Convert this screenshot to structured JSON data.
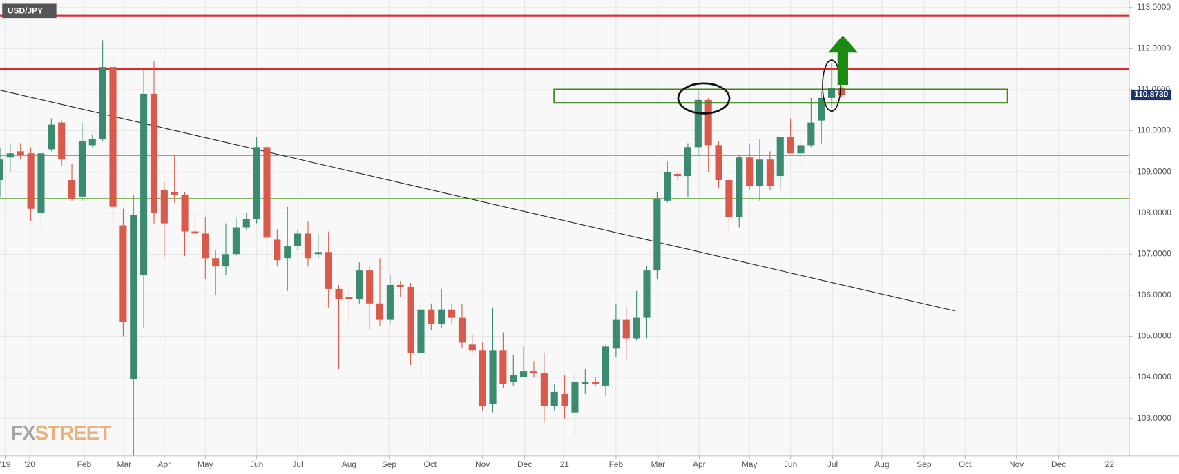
{
  "chart_data": {
    "type": "candlestick",
    "title": "USD/JPY",
    "categories": [
      null,
      null,
      null,
      null,
      null,
      null,
      null,
      null,
      null,
      null,
      null,
      null,
      null,
      null,
      null,
      null,
      null,
      null,
      null,
      null,
      null,
      null,
      null,
      null,
      null,
      null,
      null,
      null,
      null,
      null,
      null,
      null,
      null,
      null,
      null,
      null,
      null,
      null,
      null,
      null,
      null,
      null,
      null,
      null,
      null,
      null,
      null,
      null,
      null,
      null,
      null,
      null,
      null,
      null,
      null,
      null,
      null,
      null,
      null,
      null,
      null,
      null,
      null,
      null,
      null,
      null,
      null,
      null,
      null,
      null,
      null,
      null,
      null,
      null,
      null,
      null,
      null,
      null,
      null,
      null,
      null,
      null,
      null
    ],
    "open": [
      108.8,
      109.35,
      109.5,
      109.45,
      108.0,
      109.55,
      110.2,
      108.8,
      108.4,
      109.65,
      109.8,
      111.55,
      107.7,
      103.95,
      106.5,
      110.9,
      108.55,
      108.5,
      108.45,
      107.55,
      107.5,
      106.9,
      106.7,
      107.0,
      107.65,
      107.85,
      109.6,
      107.35,
      106.9,
      107.2,
      107.5,
      107.0,
      107.05,
      106.15,
      105.95,
      105.9,
      106.6,
      105.8,
      105.4,
      106.25,
      106.2,
      104.6,
      105.65,
      105.3,
      105.65,
      105.45,
      104.8,
      104.65,
      103.35,
      104.65,
      103.9,
      104.0,
      104.15,
      104.1,
      103.3,
      103.6,
      103.15,
      103.85,
      103.9,
      103.8,
      104.7,
      105.4,
      104.95,
      105.45,
      106.6,
      108.3,
      108.95,
      108.9,
      109.6,
      110.75,
      109.65,
      108.8,
      107.9,
      109.35,
      108.65,
      109.3,
      108.9,
      109.85,
      109.45,
      109.65,
      110.25,
      110.8,
      111.05
    ],
    "high": [
      109.6,
      109.7,
      109.7,
      109.6,
      109.5,
      110.3,
      110.25,
      109.2,
      110.2,
      109.9,
      112.2,
      111.7,
      108.1,
      108.45,
      111.5,
      111.7,
      108.75,
      109.4,
      108.5,
      108.0,
      107.9,
      107.1,
      107.75,
      107.9,
      108.0,
      109.85,
      109.65,
      107.6,
      108.15,
      107.6,
      107.8,
      107.5,
      107.55,
      106.25,
      106.1,
      106.8,
      106.7,
      106.9,
      106.5,
      106.35,
      106.3,
      105.8,
      105.8,
      106.15,
      105.8,
      105.8,
      105.05,
      104.85,
      105.7,
      105.1,
      104.55,
      104.75,
      104.4,
      104.6,
      103.85,
      104.05,
      104.1,
      104.2,
      104.0,
      104.8,
      105.8,
      105.7,
      106.1,
      106.7,
      108.5,
      109.25,
      109.0,
      109.7,
      111.0,
      110.8,
      109.75,
      108.85,
      109.4,
      109.7,
      109.8,
      109.5,
      109.85,
      110.3,
      109.8,
      110.8,
      110.95,
      111.65,
      111.1
    ],
    "low": [
      108.4,
      109.0,
      109.3,
      107.8,
      107.7,
      109.5,
      109.15,
      108.3,
      108.3,
      109.6,
      109.75,
      107.5,
      105.0,
      102.1,
      105.2,
      107.75,
      106.9,
      108.25,
      106.95,
      107.4,
      106.4,
      106.0,
      106.5,
      106.95,
      107.6,
      107.75,
      106.6,
      106.7,
      106.1,
      107.1,
      106.7,
      106.9,
      105.7,
      104.2,
      105.3,
      105.8,
      105.15,
      105.25,
      105.3,
      105.95,
      104.3,
      104.0,
      105.15,
      105.2,
      105.3,
      104.7,
      104.6,
      103.2,
      103.15,
      103.75,
      103.8,
      104.0,
      104.0,
      102.9,
      103.2,
      103.0,
      102.6,
      103.6,
      103.8,
      103.55,
      104.5,
      104.45,
      104.9,
      104.95,
      106.4,
      108.25,
      108.8,
      108.4,
      109.4,
      109.0,
      108.6,
      107.5,
      107.65,
      108.55,
      108.3,
      108.55,
      108.55,
      109.45,
      109.2,
      109.6,
      109.7,
      110.55,
      110.82
    ],
    "close": [
      109.3,
      109.45,
      109.4,
      108.1,
      109.45,
      110.15,
      109.3,
      108.35,
      109.75,
      109.8,
      111.55,
      108.15,
      105.35,
      107.95,
      110.9,
      108.0,
      107.75,
      108.45,
      107.55,
      107.5,
      106.9,
      106.7,
      107.0,
      107.65,
      107.85,
      109.6,
      107.4,
      106.85,
      107.2,
      107.5,
      106.9,
      107.05,
      106.15,
      105.9,
      105.9,
      106.6,
      105.8,
      105.4,
      106.25,
      106.2,
      104.6,
      105.65,
      105.3,
      105.65,
      105.45,
      104.85,
      104.65,
      103.3,
      104.65,
      103.85,
      104.05,
      104.15,
      104.1,
      103.3,
      103.65,
      103.3,
      103.9,
      103.9,
      103.85,
      104.75,
      105.4,
      104.95,
      105.45,
      106.6,
      108.35,
      109.0,
      108.9,
      109.6,
      110.75,
      109.65,
      108.8,
      107.9,
      109.35,
      108.65,
      109.3,
      108.65,
      109.85,
      109.45,
      109.65,
      110.2,
      110.8,
      111.05,
      110.87
    ],
    "up_color": "#3b8a72",
    "down_color": "#d95a4b",
    "xlim": [
      0,
      110
    ],
    "xticks": [
      {
        "value": 0.5,
        "label": "'19"
      },
      {
        "value": 2.9,
        "label": "'20"
      },
      {
        "value": 8.2,
        "label": "Feb"
      },
      {
        "value": 12.1,
        "label": "Mar"
      },
      {
        "value": 16.0,
        "label": "Apr"
      },
      {
        "value": 20.0,
        "label": "May"
      },
      {
        "value": 25.0,
        "label": "Jun"
      },
      {
        "value": 29.0,
        "label": "Jul"
      },
      {
        "value": 34.0,
        "label": "Aug"
      },
      {
        "value": 37.9,
        "label": "Sep"
      },
      {
        "value": 41.9,
        "label": "Oct"
      },
      {
        "value": 47.0,
        "label": "Nov"
      },
      {
        "value": 51.1,
        "label": "Dec"
      },
      {
        "value": 54.9,
        "label": "'21"
      },
      {
        "value": 60.0,
        "label": "Feb"
      },
      {
        "value": 64.1,
        "label": "Mar"
      },
      {
        "value": 68.1,
        "label": "Apr"
      },
      {
        "value": 73.0,
        "label": "May"
      },
      {
        "value": 77.0,
        "label": "Jun"
      },
      {
        "value": 81.1,
        "label": "Jul"
      },
      {
        "value": 85.9,
        "label": "Aug"
      },
      {
        "value": 90.0,
        "label": "Sep"
      },
      {
        "value": 94.0,
        "label": "Oct"
      },
      {
        "value": 99.0,
        "label": "Nov"
      },
      {
        "value": 103.1,
        "label": "Dec"
      },
      {
        "value": 108.0,
        "label": "'22"
      }
    ],
    "ylim": [
      102.09,
      113.18
    ],
    "yticks": [
      {
        "value": 103,
        "label": "103.0000"
      },
      {
        "value": 104,
        "label": "104.0000"
      },
      {
        "value": 105,
        "label": "105.0000"
      },
      {
        "value": 106,
        "label": "106.0000"
      },
      {
        "value": 107,
        "label": "107.0000"
      },
      {
        "value": 108,
        "label": "108.0000"
      },
      {
        "value": 109,
        "label": "109.0000"
      },
      {
        "value": 110,
        "label": "110.0000"
      },
      {
        "value": 111,
        "label": "111.0000"
      },
      {
        "value": 112,
        "label": "112.0000"
      },
      {
        "value": 113,
        "label": "113.0000"
      }
    ],
    "grid": true,
    "hlines": [
      {
        "value": 112.8,
        "color": "#e3262b"
      },
      {
        "value": 111.5,
        "color": "#e3262b"
      },
      {
        "value": 109.4,
        "color": "#5a9e2e"
      },
      {
        "value": 108.35,
        "color": "#5a9e2e"
      }
    ],
    "last_price": {
      "value": 110.873,
      "label": "110.8730",
      "color": "#1f3566"
    }
  },
  "watermark": {
    "fx": "FX",
    "street": "STREET"
  }
}
